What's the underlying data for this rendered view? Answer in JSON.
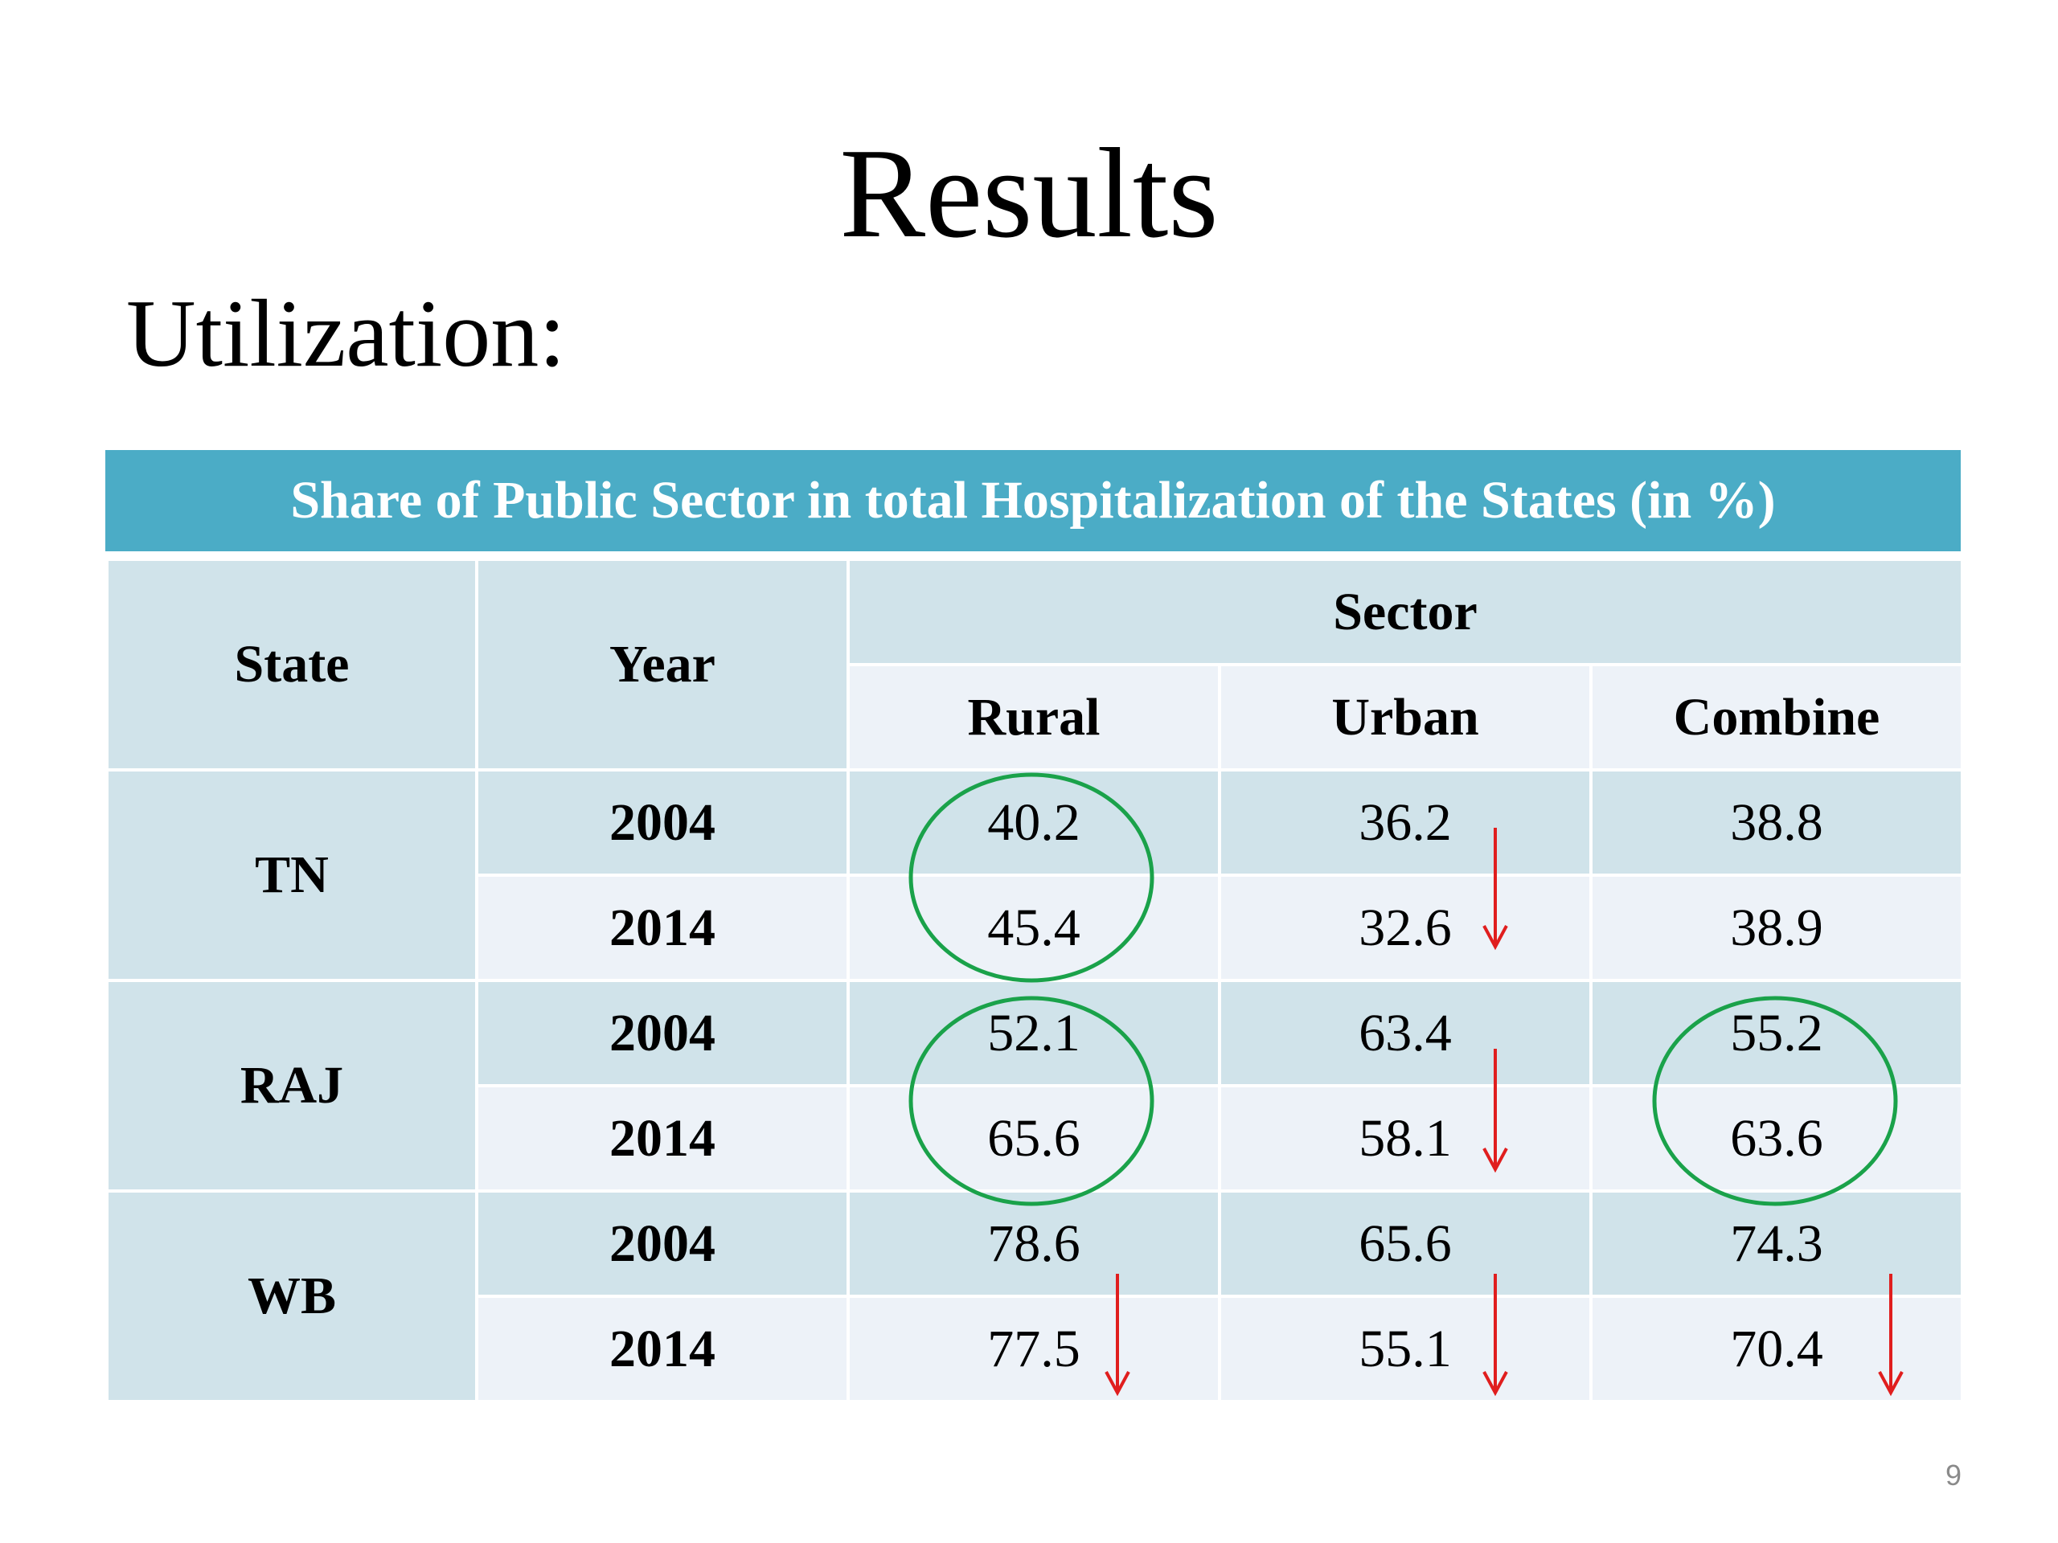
{
  "slide": {
    "title": "Results",
    "subtitle": "Utilization:",
    "page_number": "9"
  },
  "table": {
    "banner": "Share of Public Sector in total Hospitalization of the States (in %)",
    "headers": {
      "state": "State",
      "year": "Year",
      "sector": "Sector",
      "rural": "Rural",
      "urban": "Urban",
      "combine": "Combine"
    },
    "groups": [
      {
        "state": "TN",
        "rows": [
          {
            "year": "2004",
            "rural": "40.2",
            "urban": "36.2",
            "combine": "38.8"
          },
          {
            "year": "2014",
            "rural": "45.4",
            "urban": "32.6",
            "combine": "38.9"
          }
        ]
      },
      {
        "state": "RAJ",
        "rows": [
          {
            "year": "2004",
            "rural": "52.1",
            "urban": "63.4",
            "combine": "55.2"
          },
          {
            "year": "2014",
            "rural": "65.6",
            "urban": "58.1",
            "combine": "63.6"
          }
        ]
      },
      {
        "state": "WB",
        "rows": [
          {
            "year": "2004",
            "rural": "78.6",
            "urban": "65.6",
            "combine": "74.3"
          },
          {
            "year": "2014",
            "rural": "77.5",
            "urban": "55.1",
            "combine": "70.4"
          }
        ]
      }
    ]
  },
  "annotations": {
    "circle_color": "#1aa24a",
    "arrow_color": "#e01e1e",
    "circled_cells": [
      "TN-rural",
      "RAJ-rural",
      "RAJ-combine"
    ],
    "down_arrows": [
      "TN-urban",
      "RAJ-urban",
      "WB-rural",
      "WB-urban",
      "WB-combine"
    ]
  }
}
